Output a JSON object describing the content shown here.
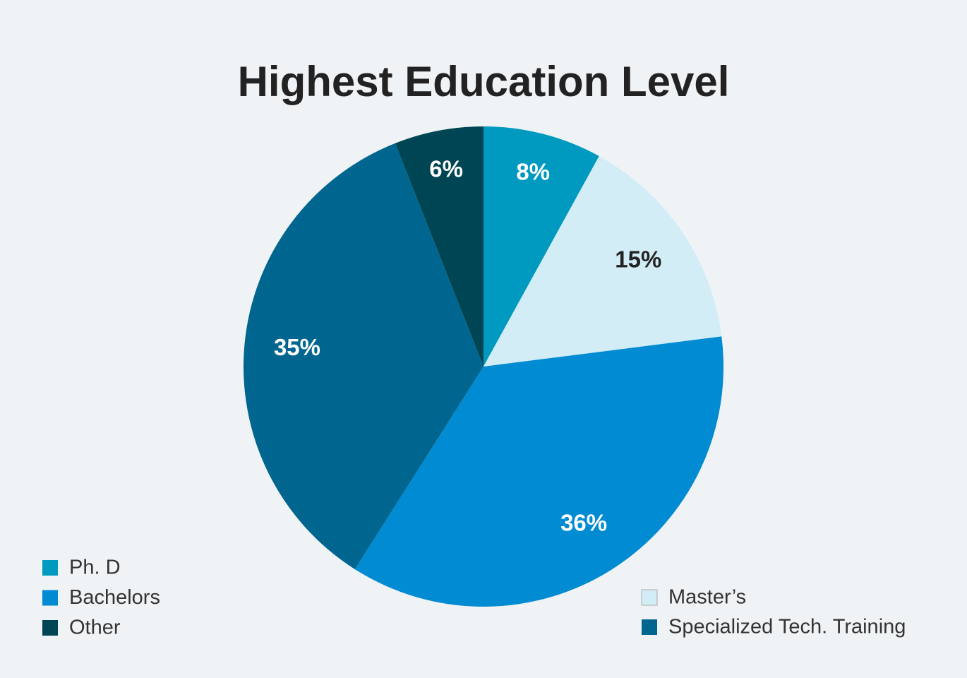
{
  "chart_data": {
    "type": "pie",
    "title": "Highest Education Level",
    "categories": [
      "Ph. D",
      "Master’s",
      "Bachelors",
      "Specialized Tech. Training",
      "Other"
    ],
    "values": [
      8,
      15,
      36,
      35,
      6
    ],
    "value_labels": [
      "8%",
      "15%",
      "36%",
      "35%",
      "6%"
    ],
    "colors": [
      "#0099bf",
      "#d3edf7",
      "#008bd2",
      "#00668f",
      "#004553"
    ]
  }
}
